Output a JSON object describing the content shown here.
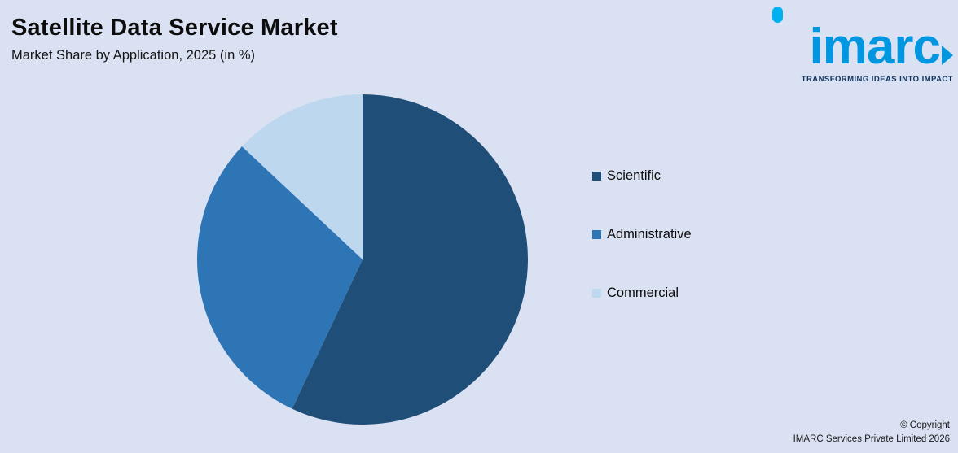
{
  "header": {
    "title": "Satellite Data Service Market",
    "subtitle": "Market Share by Application, 2025 (in %)"
  },
  "logo": {
    "text": "imarc",
    "tagline": "TRANSFORMING IDEAS INTO IMPACT"
  },
  "footer": {
    "line1": "© Copyright",
    "line2": "IMARC Services Private Limited 2026"
  },
  "colors": {
    "background": "#d9e1f2",
    "logo_blue": "#0096e0",
    "logo_dot_cyan": "#00b0f0",
    "tagline_navy": "#12335e"
  },
  "chart_data": {
    "type": "pie",
    "title": "Satellite Data Service Market",
    "subtitle": "Market Share by Application, 2025 (in %)",
    "unit": "%",
    "year": "2025",
    "start_angle_deg": 0,
    "direction": "clockwise",
    "legend_position": "right",
    "slices": [
      {
        "label": "Scientific",
        "value": 57,
        "color": "#1f4e79"
      },
      {
        "label": "Administrative",
        "value": 30,
        "color": "#2e75b6"
      },
      {
        "label": "Commercial",
        "value": 13,
        "color": "#bdd7ee"
      }
    ]
  }
}
